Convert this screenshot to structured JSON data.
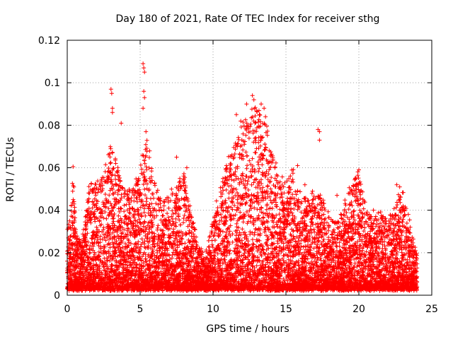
{
  "chart_data": {
    "type": "scatter",
    "title": "Day 180 of 2021, Rate Of TEC Index for receiver sthg",
    "xlabel": "GPS time / hours",
    "ylabel": "ROTI / TECUs",
    "xlim": [
      0,
      25
    ],
    "ylim": [
      0,
      0.12
    ],
    "x_ticks": [
      0,
      5,
      10,
      15,
      20,
      25
    ],
    "y_ticks": [
      0,
      0.02,
      0.04,
      0.06,
      0.08,
      0.1,
      0.12
    ],
    "x_tick_labels": [
      "0",
      "5",
      "10",
      "15",
      "20",
      "25"
    ],
    "y_tick_labels": [
      "0",
      "0.02",
      "0.04",
      "0.06",
      "0.08",
      "0.1",
      "0.12"
    ],
    "grid": true,
    "marker": "plus",
    "series": [
      {
        "name": "ROTI",
        "color": "#ff0000",
        "x_range_hours": [
          0,
          24
        ],
        "envelope": [
          {
            "x": 0.0,
            "peak": 0.032
          },
          {
            "x": 0.25,
            "peak": 0.038
          },
          {
            "x": 0.4,
            "peak": 0.06
          },
          {
            "x": 0.6,
            "peak": 0.03
          },
          {
            "x": 1.0,
            "peak": 0.024
          },
          {
            "x": 1.5,
            "peak": 0.052
          },
          {
            "x": 2.0,
            "peak": 0.054
          },
          {
            "x": 2.5,
            "peak": 0.058
          },
          {
            "x": 3.0,
            "peak": 0.072
          },
          {
            "x": 3.5,
            "peak": 0.06
          },
          {
            "x": 4.0,
            "peak": 0.05
          },
          {
            "x": 4.5,
            "peak": 0.05
          },
          {
            "x": 5.0,
            "peak": 0.062
          },
          {
            "x": 5.5,
            "peak": 0.075
          },
          {
            "x": 6.0,
            "peak": 0.052
          },
          {
            "x": 6.5,
            "peak": 0.044
          },
          {
            "x": 7.0,
            "peak": 0.048
          },
          {
            "x": 7.5,
            "peak": 0.052
          },
          {
            "x": 8.0,
            "peak": 0.058
          },
          {
            "x": 8.5,
            "peak": 0.04
          },
          {
            "x": 9.0,
            "peak": 0.022
          },
          {
            "x": 9.5,
            "peak": 0.02
          },
          {
            "x": 10.0,
            "peak": 0.035
          },
          {
            "x": 10.5,
            "peak": 0.055
          },
          {
            "x": 11.0,
            "peak": 0.065
          },
          {
            "x": 11.5,
            "peak": 0.07
          },
          {
            "x": 12.0,
            "peak": 0.082
          },
          {
            "x": 12.5,
            "peak": 0.086
          },
          {
            "x": 13.0,
            "peak": 0.09
          },
          {
            "x": 13.5,
            "peak": 0.088
          },
          {
            "x": 14.0,
            "peak": 0.068
          },
          {
            "x": 14.5,
            "peak": 0.06
          },
          {
            "x": 15.0,
            "peak": 0.055
          },
          {
            "x": 15.5,
            "peak": 0.06
          },
          {
            "x": 16.0,
            "peak": 0.05
          },
          {
            "x": 16.5,
            "peak": 0.045
          },
          {
            "x": 17.0,
            "peak": 0.052
          },
          {
            "x": 17.5,
            "peak": 0.045
          },
          {
            "x": 18.0,
            "peak": 0.038
          },
          {
            "x": 18.5,
            "peak": 0.035
          },
          {
            "x": 19.0,
            "peak": 0.045
          },
          {
            "x": 19.5,
            "peak": 0.052
          },
          {
            "x": 20.0,
            "peak": 0.058
          },
          {
            "x": 20.5,
            "peak": 0.04
          },
          {
            "x": 21.0,
            "peak": 0.038
          },
          {
            "x": 21.5,
            "peak": 0.04
          },
          {
            "x": 22.0,
            "peak": 0.035
          },
          {
            "x": 22.5,
            "peak": 0.045
          },
          {
            "x": 23.0,
            "peak": 0.05
          },
          {
            "x": 23.5,
            "peak": 0.035
          },
          {
            "x": 24.0,
            "peak": 0.018
          }
        ],
        "baseline": 0.003,
        "notable_points": [
          {
            "x": 0.4,
            "y": 0.0605
          },
          {
            "x": 3.0,
            "y": 0.097
          },
          {
            "x": 3.05,
            "y": 0.095
          },
          {
            "x": 3.1,
            "y": 0.088
          },
          {
            "x": 3.1,
            "y": 0.086
          },
          {
            "x": 3.7,
            "y": 0.081
          },
          {
            "x": 5.2,
            "y": 0.109
          },
          {
            "x": 5.25,
            "y": 0.107
          },
          {
            "x": 5.3,
            "y": 0.105
          },
          {
            "x": 5.25,
            "y": 0.096
          },
          {
            "x": 5.3,
            "y": 0.093
          },
          {
            "x": 5.2,
            "y": 0.088
          },
          {
            "x": 5.4,
            "y": 0.077
          },
          {
            "x": 7.5,
            "y": 0.065
          },
          {
            "x": 8.2,
            "y": 0.06
          },
          {
            "x": 11.6,
            "y": 0.085
          },
          {
            "x": 11.9,
            "y": 0.082
          },
          {
            "x": 12.3,
            "y": 0.09
          },
          {
            "x": 12.7,
            "y": 0.094
          },
          {
            "x": 12.8,
            "y": 0.092
          },
          {
            "x": 13.3,
            "y": 0.09
          },
          {
            "x": 13.5,
            "y": 0.088
          },
          {
            "x": 13.6,
            "y": 0.084
          },
          {
            "x": 15.8,
            "y": 0.061
          },
          {
            "x": 17.2,
            "y": 0.078
          },
          {
            "x": 17.3,
            "y": 0.077
          },
          {
            "x": 17.3,
            "y": 0.073
          },
          {
            "x": 16.3,
            "y": 0.052
          },
          {
            "x": 20.0,
            "y": 0.059
          },
          {
            "x": 19.8,
            "y": 0.052
          },
          {
            "x": 22.6,
            "y": 0.052
          },
          {
            "x": 22.8,
            "y": 0.051
          },
          {
            "x": 22.8,
            "y": 0.045
          },
          {
            "x": 21.0,
            "y": 0.04
          },
          {
            "x": 18.5,
            "y": 0.047
          }
        ]
      }
    ]
  }
}
